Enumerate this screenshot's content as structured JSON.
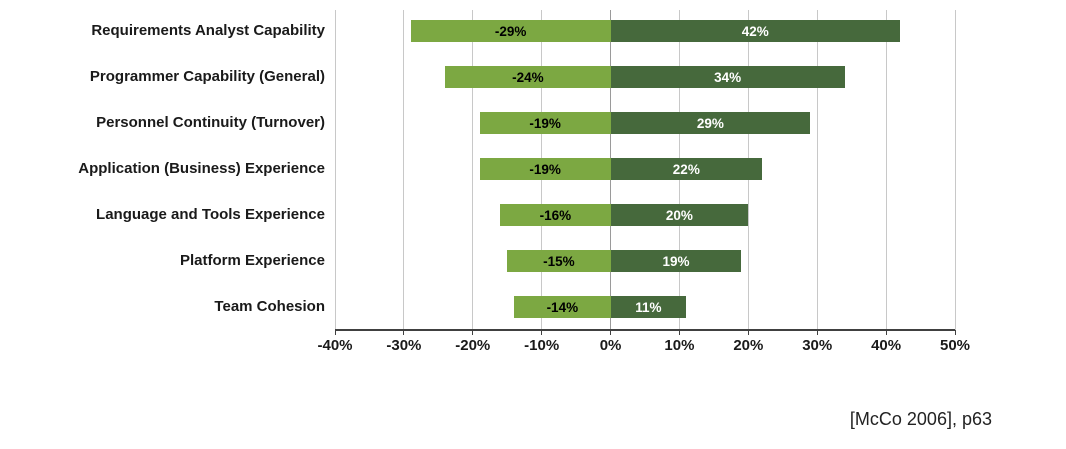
{
  "chart_data": {
    "type": "bar",
    "subtype": "diverging-horizontal-tornado",
    "title": "",
    "xlabel": "",
    "ylabel": "",
    "xlim": [
      -40,
      50
    ],
    "grid": true,
    "legend": "none",
    "x_ticks": [
      {
        "value": -40,
        "label": "-40%"
      },
      {
        "value": -30,
        "label": "-30%"
      },
      {
        "value": -20,
        "label": "-20%"
      },
      {
        "value": -10,
        "label": "-10%"
      },
      {
        "value": 0,
        "label": "0%"
      },
      {
        "value": 10,
        "label": "10%"
      },
      {
        "value": 20,
        "label": "20%"
      },
      {
        "value": 30,
        "label": "30%"
      },
      {
        "value": 40,
        "label": "40%"
      },
      {
        "value": 50,
        "label": "50%"
      }
    ],
    "colors": {
      "negative_bar": "#7CA842",
      "positive_bar": "#46693C",
      "negative_text": "#000000",
      "positive_text": "#FFFFFF",
      "gridline": "#C8C8C8",
      "zero_line": "#9A9A9A",
      "axis_line": "#404040",
      "tick_text": "#1A1A1A",
      "label_text": "#1A1A1A"
    },
    "rows": [
      {
        "label": "Requirements Analyst Capability",
        "negative": -29,
        "negative_label": "-29%",
        "positive": 42,
        "positive_label": "42%"
      },
      {
        "label": "Programmer Capability (General)",
        "negative": -24,
        "negative_label": "-24%",
        "positive": 34,
        "positive_label": "34%"
      },
      {
        "label": "Personnel Continuity (Turnover)",
        "negative": -19,
        "negative_label": "-19%",
        "positive": 29,
        "positive_label": "29%"
      },
      {
        "label": "Application (Business) Experience",
        "negative": -19,
        "negative_label": "-19%",
        "positive": 22,
        "positive_label": "22%"
      },
      {
        "label": "Language and Tools Experience",
        "negative": -16,
        "negative_label": "-16%",
        "positive": 20,
        "positive_label": "20%"
      },
      {
        "label": "Platform Experience",
        "negative": -15,
        "negative_label": "-15%",
        "positive": 19,
        "positive_label": "19%"
      },
      {
        "label": "Team Cohesion",
        "negative": -14,
        "negative_label": "-14%",
        "positive": 11,
        "positive_label": "11%"
      }
    ]
  },
  "citation": "[McCo 2006], p63"
}
